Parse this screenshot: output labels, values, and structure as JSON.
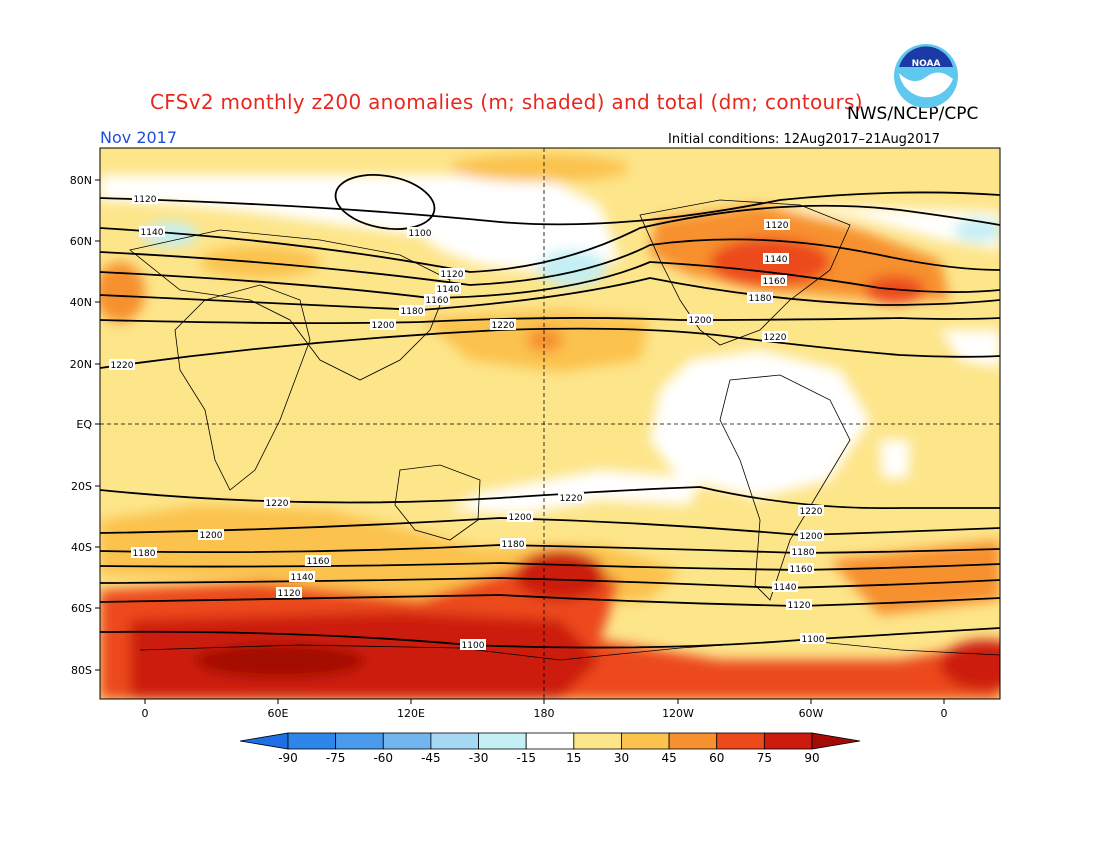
{
  "header": {
    "title": "CFSv2 monthly z200 anomalies (m; shaded) and total (dm; contours)",
    "agency": "NWS/NCEP/CPC",
    "month": "Nov 2017",
    "initial_conditions": "Initial conditions: 12Aug2017–21Aug2017",
    "logo_text": "NOAA"
  },
  "axes": {
    "lat_labels": [
      "80N",
      "60N",
      "40N",
      "20N",
      "EQ",
      "20S",
      "40S",
      "60S",
      "80S"
    ],
    "lon_labels": [
      "0",
      "60E",
      "120E",
      "180",
      "120W",
      "60W",
      "0"
    ]
  },
  "legend": {
    "ticks": [
      "-90",
      "-75",
      "-60",
      "-45",
      "-30",
      "-15",
      "15",
      "30",
      "45",
      "60",
      "75",
      "90"
    ],
    "colors": [
      "#1e6ee6",
      "#2f86ea",
      "#4a9bee",
      "#72b6f0",
      "#a5d8f2",
      "#c4eff4",
      "#ffffff",
      "#fde58a",
      "#fbc24e",
      "#f7902e",
      "#ec4a1c",
      "#cc1a0d",
      "#a30c06"
    ]
  },
  "contour_labels": {
    "nh": [
      "1120",
      "1100",
      "1140",
      "1160",
      "1180",
      "1200",
      "1220",
      "1120",
      "1140",
      "1160",
      "1180",
      "1200",
      "1220"
    ],
    "sh": [
      "1220",
      "1200",
      "1180",
      "1160",
      "1140",
      "1120",
      "1100",
      "1220",
      "1200",
      "1180",
      "1160",
      "1140",
      "1120",
      "1100"
    ]
  },
  "colors": {
    "title": "#e8281e",
    "month": "#1f4fd8",
    "base": "#fde58a"
  }
}
